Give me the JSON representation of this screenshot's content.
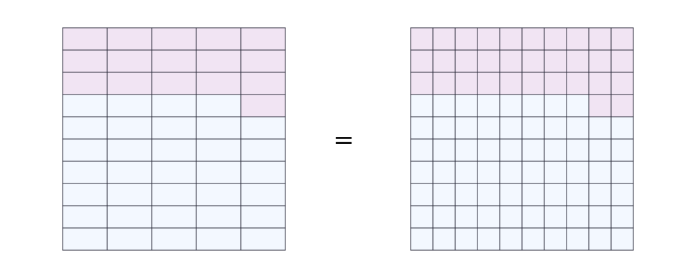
{
  "equation": {
    "operator": "="
  },
  "colors": {
    "shaded": "#f1e4f3",
    "unshaded": "#f3f8ff",
    "grid_line": "#2a2a3a",
    "background": "#ffffff",
    "operator": "#111111"
  },
  "left_grid": {
    "columns": 5,
    "rows": 10,
    "shaded_cells": [
      [
        0,
        0
      ],
      [
        0,
        1
      ],
      [
        0,
        2
      ],
      [
        0,
        3
      ],
      [
        0,
        4
      ],
      [
        1,
        0
      ],
      [
        1,
        1
      ],
      [
        1,
        2
      ],
      [
        1,
        3
      ],
      [
        1,
        4
      ],
      [
        2,
        0
      ],
      [
        2,
        1
      ],
      [
        2,
        2
      ],
      [
        2,
        3
      ],
      [
        2,
        4
      ],
      [
        3,
        4
      ]
    ]
  },
  "right_grid": {
    "columns": 10,
    "rows": 10,
    "shaded_cells": [
      [
        0,
        0
      ],
      [
        0,
        1
      ],
      [
        0,
        2
      ],
      [
        0,
        3
      ],
      [
        0,
        4
      ],
      [
        0,
        5
      ],
      [
        0,
        6
      ],
      [
        0,
        7
      ],
      [
        0,
        8
      ],
      [
        0,
        9
      ],
      [
        1,
        0
      ],
      [
        1,
        1
      ],
      [
        1,
        2
      ],
      [
        1,
        3
      ],
      [
        1,
        4
      ],
      [
        1,
        5
      ],
      [
        1,
        6
      ],
      [
        1,
        7
      ],
      [
        1,
        8
      ],
      [
        1,
        9
      ],
      [
        2,
        0
      ],
      [
        2,
        1
      ],
      [
        2,
        2
      ],
      [
        2,
        3
      ],
      [
        2,
        4
      ],
      [
        2,
        5
      ],
      [
        2,
        6
      ],
      [
        2,
        7
      ],
      [
        2,
        8
      ],
      [
        2,
        9
      ],
      [
        3,
        8
      ],
      [
        3,
        9
      ]
    ]
  }
}
